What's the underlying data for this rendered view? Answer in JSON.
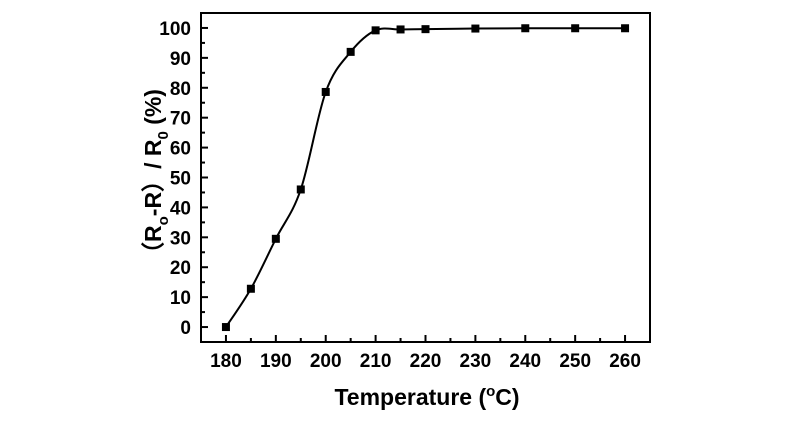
{
  "chart_data": {
    "type": "scatter",
    "title": "",
    "xlabel": "Temperature (°C)",
    "ylabel": "（R₀-R）/ R₀ (%)",
    "xlim": [
      175,
      265
    ],
    "ylim": [
      -5,
      105
    ],
    "x_ticks": [
      180,
      190,
      200,
      210,
      220,
      230,
      240,
      250,
      260
    ],
    "y_ticks": [
      0,
      10,
      20,
      30,
      40,
      50,
      60,
      70,
      80,
      90,
      100
    ],
    "grid": false,
    "legend": "none",
    "series": [
      {
        "marker": "square",
        "line": "smooth",
        "color": "#000000",
        "x": [
          180,
          185,
          190,
          195,
          200,
          205,
          210,
          215,
          220,
          230,
          240,
          250,
          260
        ],
        "y": [
          0,
          12.8,
          29.5,
          46.0,
          78.6,
          92.0,
          99.2,
          99.5,
          99.6,
          99.8,
          99.9,
          99.9,
          99.9
        ]
      }
    ]
  }
}
